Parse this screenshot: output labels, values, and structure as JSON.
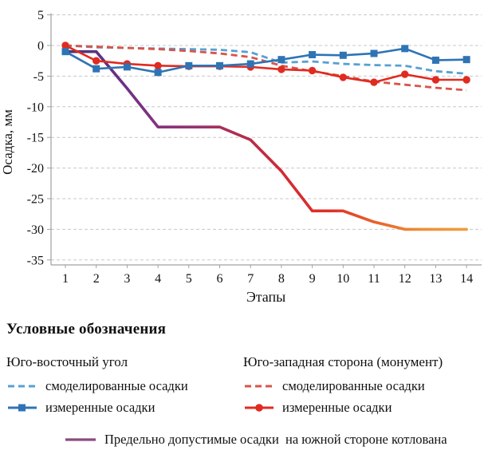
{
  "figure": {
    "background": "#ffffff",
    "text_color": "#111111",
    "grid_color": "#c8c8c8",
    "axis_color": "#a0a0a0"
  },
  "chart_data": {
    "type": "line",
    "title": "",
    "xlabel": "Этапы",
    "ylabel": "Осадка, мм",
    "x": [
      1,
      2,
      3,
      4,
      5,
      6,
      7,
      8,
      9,
      10,
      11,
      12,
      13,
      14
    ],
    "ylim": [
      -35,
      5
    ],
    "yticks": [
      5,
      0,
      -5,
      -10,
      -15,
      -20,
      -25,
      -30,
      -35
    ],
    "grid": "horizontal-dashed",
    "legend_position": "below",
    "series": [
      {
        "name": "se_modeled",
        "label": "смоделированные осадки",
        "group": "Юго-восточный угол",
        "color": "#56a0d3",
        "style": "dashed",
        "marker": "none",
        "values": [
          0,
          -0.3,
          -0.4,
          -0.5,
          -0.6,
          -0.7,
          -1.1,
          -2.8,
          -2.6,
          -3.0,
          -3.2,
          -3.3,
          -4.2,
          -4.6
        ]
      },
      {
        "name": "sw_modeled",
        "label": "смоделированные осадки",
        "group": "Юго-западная сторона (монумент)",
        "color": "#d8544a",
        "style": "dashed",
        "marker": "none",
        "values": [
          0,
          -0.2,
          -0.4,
          -0.6,
          -0.9,
          -1.3,
          -1.9,
          -3.3,
          -4.2,
          -5.0,
          -5.9,
          -6.4,
          -6.9,
          -7.3
        ]
      },
      {
        "name": "limit",
        "label": "Предельно допустимые осадки  на южной стороне котлована",
        "group": "",
        "color_gradient": [
          "#46397a",
          "#643083",
          "#82327f",
          "#98336c",
          "#b52c4b",
          "#d32a32",
          "#e13128",
          "#e8652a",
          "#ee8f38",
          "#f09d3e"
        ],
        "style": "solid",
        "marker": "none",
        "width": 3.6,
        "values": [
          -1,
          -1,
          -7,
          -13.3,
          -13.3,
          -13.3,
          -15.4,
          -20.5,
          -27,
          -27,
          -28.8,
          -30,
          -30,
          -30
        ]
      },
      {
        "name": "sw_measured",
        "label": "измеренные осадки",
        "group": "Юго-западная сторона (монумент)",
        "color": "#e02b20",
        "style": "solid",
        "marker": "circle",
        "values": [
          0,
          -2.5,
          -3.0,
          -3.3,
          -3.4,
          -3.4,
          -3.5,
          -3.9,
          -4.1,
          -5.2,
          -6.0,
          -4.7,
          -5.6,
          -5.6
        ]
      },
      {
        "name": "se_measured",
        "label": "измеренные осадки",
        "group": "Юго-восточный угол",
        "color": "#2e74b5",
        "style": "solid",
        "marker": "square",
        "values": [
          -1.0,
          -3.8,
          -3.5,
          -4.4,
          -3.3,
          -3.3,
          -3.0,
          -2.3,
          -1.5,
          -1.6,
          -1.3,
          -0.5,
          -2.4,
          -2.3
        ]
      }
    ]
  },
  "legend": {
    "heading": "Условные обозначения",
    "columns": [
      {
        "title": "Юго-восточный угол",
        "items": [
          {
            "label": "смоделированные осадки"
          },
          {
            "label": "измеренные осадки"
          }
        ]
      },
      {
        "title": "Юго-западная сторона (монумент)",
        "items": [
          {
            "label": "смоделированные осадки"
          },
          {
            "label": "измеренные осадки"
          }
        ]
      }
    ],
    "footer": {
      "label": "Предельно допустимые осадки  на южной стороне котлована",
      "color": "#8a4a7c"
    }
  }
}
